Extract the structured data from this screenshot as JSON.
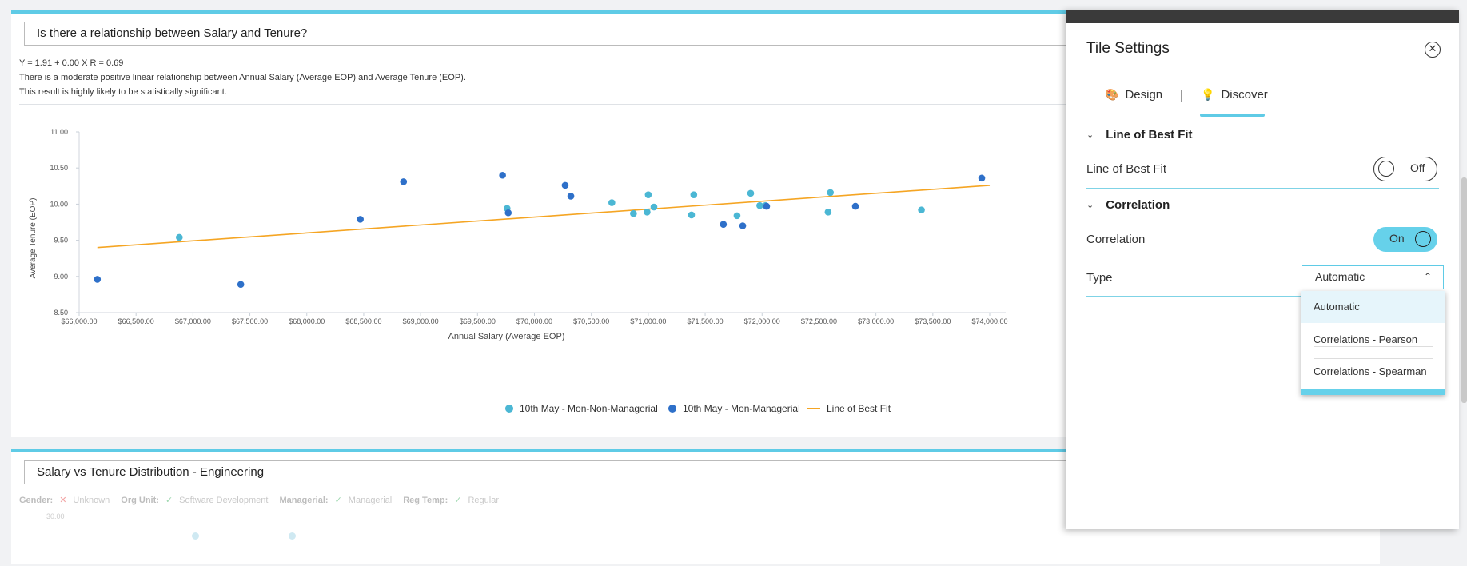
{
  "tile1": {
    "title": "Is there a relationship between Salary and Tenure?",
    "equation": "Y = 1.91 + 0.00 X    R = 0.69",
    "description": "There is a moderate positive linear relationship between Annual Salary (Average EOP) and Average Tenure (EOP).",
    "significance": "This result is highly likely to be statistically significant."
  },
  "chart_data": {
    "type": "scatter",
    "xlabel": "Annual Salary (Average EOP)",
    "ylabel": "Average Tenure (EOP)",
    "xlim": [
      66000,
      74000
    ],
    "ylim": [
      8.5,
      11
    ],
    "xticks": [
      "$66,000.00",
      "$66,500.00",
      "$67,000.00",
      "$67,500.00",
      "$68,000.00",
      "$68,500.00",
      "$69,000.00",
      "$69,500.00",
      "$70,000.00",
      "$70,500.00",
      "$71,000.00",
      "$71,500.00",
      "$72,000.00",
      "$72,500.00",
      "$73,000.00",
      "$73,500.00",
      "$74,000.00"
    ],
    "yticks": [
      "11.00",
      "10.50",
      "10.00",
      "9.50",
      "9.00",
      "8.50"
    ],
    "grid": false,
    "legend_position": "bottom",
    "series": [
      {
        "name": "10th May - Mon-Non-Managerial",
        "color": "#4bb7d4",
        "points": [
          [
            66880,
            9.54
          ],
          [
            69760,
            9.94
          ],
          [
            70680,
            10.02
          ],
          [
            70870,
            9.87
          ],
          [
            70990,
            9.89
          ],
          [
            71000,
            10.13
          ],
          [
            71050,
            9.96
          ],
          [
            71380,
            9.85
          ],
          [
            71400,
            10.13
          ],
          [
            71780,
            9.84
          ],
          [
            71900,
            10.15
          ],
          [
            71980,
            9.98
          ],
          [
            72030,
            9.98
          ],
          [
            72580,
            9.89
          ],
          [
            72600,
            10.16
          ],
          [
            73400,
            9.92
          ]
        ]
      },
      {
        "name": "10th May - Mon-Managerial",
        "color": "#2e70c9",
        "points": [
          [
            66160,
            8.96
          ],
          [
            67420,
            8.89
          ],
          [
            68470,
            9.79
          ],
          [
            68850,
            10.31
          ],
          [
            69720,
            10.4
          ],
          [
            69770,
            9.88
          ],
          [
            70270,
            10.26
          ],
          [
            70320,
            10.11
          ],
          [
            71660,
            9.72
          ],
          [
            71830,
            9.7
          ],
          [
            72040,
            9.97
          ],
          [
            72820,
            9.97
          ],
          [
            73930,
            10.36
          ]
        ]
      },
      {
        "name": "Line of Best Fit",
        "color": "#f5a523",
        "type": "line",
        "points": [
          [
            66160,
            9.4
          ],
          [
            74000,
            10.26
          ]
        ]
      }
    ]
  },
  "tile2": {
    "title": "Salary vs Tenure Distribution - Engineering",
    "filters": [
      {
        "key": "Gender:",
        "value": "Unknown",
        "icon": "x-icon"
      },
      {
        "key": "Org Unit:",
        "value": "Software Development",
        "icon": "check-icon"
      },
      {
        "key": "Managerial:",
        "value": "Managerial",
        "icon": "check-icon"
      },
      {
        "key": "Reg Temp:",
        "value": "Regular",
        "icon": "check-icon"
      }
    ],
    "ytick": "30.00"
  },
  "panel": {
    "title": "Tile Settings",
    "tabs": [
      {
        "label": "Design",
        "icon": "palette-icon"
      },
      {
        "label": "Discover",
        "icon": "lightbulb-icon",
        "active": true
      }
    ],
    "sections": {
      "best_fit": {
        "header": "Line of Best Fit",
        "row_label": "Line of Best Fit",
        "toggle": "Off"
      },
      "correlation": {
        "header": "Correlation",
        "row_label": "Correlation",
        "toggle": "On",
        "type_label": "Type",
        "type_value": "Automatic"
      }
    },
    "type_options": [
      "Automatic",
      "Correlations - Pearson",
      "Correlations - Spearman"
    ],
    "colors": {
      "accent": "#5fcbe6",
      "toggle_on": "#66d1ea"
    }
  }
}
